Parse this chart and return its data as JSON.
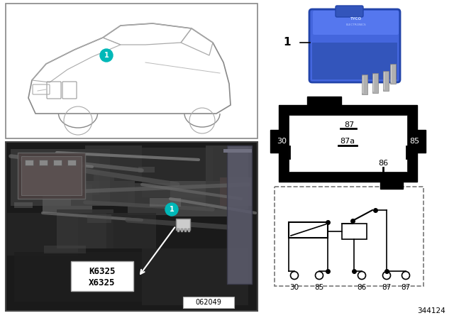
{
  "bg_color": "#ffffff",
  "ref_number": "344124",
  "diag_number": "062049",
  "part_labels": [
    "K6325",
    "X6325"
  ],
  "item_number": "1",
  "teal_color": "#00b8b8",
  "relay_blue": "#3355cc",
  "pin_labels_right": [
    "87",
    "30",
    "87a",
    "85",
    "86"
  ],
  "circuit_labels": [
    "30",
    "85",
    "86",
    "87",
    "87"
  ]
}
